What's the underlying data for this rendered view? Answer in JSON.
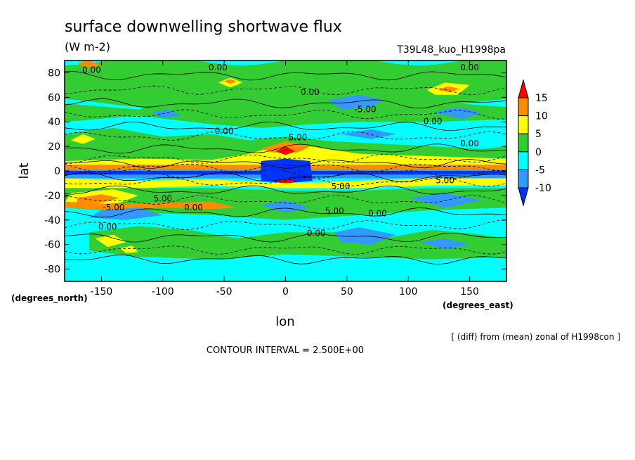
{
  "chart_data": {
    "type": "heatmap",
    "title": "surface downwelling shortwave flux",
    "units": "(W m-2)",
    "run_label": "T39L48_kuo_H1998pa",
    "xlabel": "lon",
    "ylabel": "lat",
    "x_unit_label": "(degrees_east)",
    "y_unit_label": "(degrees_north)",
    "xlim": [
      -180,
      180
    ],
    "ylim": [
      -90,
      90
    ],
    "x_ticks": [
      -150,
      -100,
      -50,
      0,
      50,
      100,
      150
    ],
    "y_ticks": [
      -80,
      -60,
      -40,
      -20,
      0,
      20,
      40,
      60,
      80
    ],
    "note": "[ (diff) from (mean) zonal of H1998con ]",
    "contour_interval": "CONTOUR INTERVAL = 2.500E+00",
    "colorbar": {
      "ticks": [
        15,
        10,
        5,
        0,
        -5,
        -10
      ],
      "colors": {
        "gt15": "#ff0000",
        "10_15": "#ff8c00",
        "5_10": "#ffff00",
        "0_5": "#33cc33",
        "-5_0": "#00ffff",
        "-10_-5": "#3399ff",
        "lt-10": "#0033ff"
      }
    },
    "contour_labels": [
      {
        "text": "0.00",
        "lon": -158,
        "lat": 80
      },
      {
        "text": "0.00",
        "lon": -55,
        "lat": 82
      },
      {
        "text": "0.00",
        "lon": 20,
        "lat": 62
      },
      {
        "text": "0.00",
        "lon": 150,
        "lat": 82
      },
      {
        "text": "-5.00",
        "lon": 65,
        "lat": 48
      },
      {
        "text": "0.00",
        "lon": -50,
        "lat": 30
      },
      {
        "text": "0.00",
        "lon": 120,
        "lat": 38
      },
      {
        "text": "5.00",
        "lon": 10,
        "lat": 25
      },
      {
        "text": "0.00",
        "lon": 150,
        "lat": 20
      },
      {
        "text": "5.00",
        "lon": -100,
        "lat": -25
      },
      {
        "text": "0.00",
        "lon": -75,
        "lat": -32
      },
      {
        "text": "-5.00",
        "lon": -140,
        "lat": -32
      },
      {
        "text": "5.00",
        "lon": 45,
        "lat": -15
      },
      {
        "text": "5.00",
        "lon": 40,
        "lat": -35
      },
      {
        "text": "0.00",
        "lon": 75,
        "lat": -37
      },
      {
        "text": "0.00",
        "lon": 25,
        "lat": -53
      },
      {
        "text": "0.00",
        "lon": -145,
        "lat": -48
      },
      {
        "text": "5.00",
        "lon": 130,
        "lat": -10
      }
    ]
  }
}
